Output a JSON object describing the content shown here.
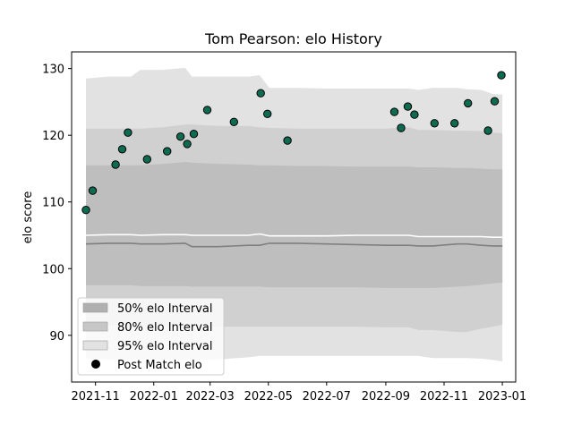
{
  "chart_data": {
    "type": "scatter",
    "title": "Tom Pearson: elo History",
    "xlabel": "",
    "ylabel": "elo score",
    "x_range": [
      "2021-10-07",
      "2023-01-15"
    ],
    "ylim": [
      83,
      132.5
    ],
    "x_ticks": [
      {
        "date": "2021-11-01",
        "label": "2021-11"
      },
      {
        "date": "2022-01-01",
        "label": "2022-01"
      },
      {
        "date": "2022-03-01",
        "label": "2022-03"
      },
      {
        "date": "2022-05-01",
        "label": "2022-05"
      },
      {
        "date": "2022-07-01",
        "label": "2022-07"
      },
      {
        "date": "2022-09-01",
        "label": "2022-09"
      },
      {
        "date": "2022-11-01",
        "label": "2022-11"
      },
      {
        "date": "2023-01-01",
        "label": "2023-01"
      }
    ],
    "y_ticks": [
      90,
      100,
      110,
      120,
      130
    ],
    "grid": false,
    "legend_position": "lower-left",
    "legend": [
      {
        "label": "50% elo Interval",
        "kind": "band",
        "color": "#b0b0b0"
      },
      {
        "label": "80% elo Interval",
        "kind": "band",
        "color": "#c7c7c7"
      },
      {
        "label": "95% elo Interval",
        "kind": "band",
        "color": "#e2e2e2"
      },
      {
        "label": "Post Match elo",
        "kind": "marker",
        "color": "#000000"
      }
    ],
    "colors": {
      "band95": "#e2e2e2",
      "band80": "#d0d0d0",
      "band50": "#bebebe",
      "median_line": "#7f7f7f",
      "mean_line": "#ffffff",
      "marker_fill": "#0e6b4f",
      "marker_edge": "#000000"
    },
    "bands": {
      "dates": [
        "2021-10-22",
        "2021-11-15",
        "2021-12-08",
        "2021-12-18",
        "2022-01-10",
        "2022-02-03",
        "2022-02-10",
        "2022-03-10",
        "2022-04-10",
        "2022-04-22",
        "2022-05-02",
        "2022-06-01",
        "2022-07-01",
        "2022-08-01",
        "2022-09-01",
        "2022-09-25",
        "2022-10-05",
        "2022-10-20",
        "2022-11-15",
        "2022-11-25",
        "2022-12-10",
        "2022-12-22",
        "2023-01-01"
      ],
      "p95_upper": [
        128.5,
        128.8,
        128.8,
        129.8,
        129.8,
        130.1,
        128.8,
        128.8,
        128.8,
        129.0,
        127.1,
        127.1,
        127.0,
        127.0,
        127.0,
        127.0,
        126.8,
        127.1,
        127.1,
        126.9,
        126.8,
        126.2,
        126.1
      ],
      "p80_upper": [
        121.0,
        121.0,
        121.0,
        121.0,
        121.2,
        121.6,
        121.6,
        121.4,
        121.4,
        121.2,
        121.1,
        121.0,
        121.0,
        121.0,
        121.0,
        121.2,
        120.8,
        120.8,
        120.7,
        120.7,
        120.6,
        120.4,
        120.3
      ],
      "p50_upper": [
        115.5,
        115.5,
        115.5,
        115.5,
        115.7,
        116.0,
        115.9,
        115.7,
        115.6,
        115.5,
        115.5,
        115.4,
        115.4,
        115.3,
        115.3,
        115.3,
        115.2,
        115.2,
        115.1,
        115.1,
        115.0,
        114.9,
        114.9
      ],
      "mean": [
        105.0,
        105.1,
        105.1,
        105.0,
        105.1,
        105.1,
        105.0,
        105.0,
        105.0,
        105.2,
        104.9,
        104.9,
        104.9,
        105.0,
        105.0,
        105.0,
        104.8,
        104.8,
        104.8,
        104.8,
        104.8,
        104.7,
        104.7
      ],
      "median": [
        103.7,
        103.8,
        103.8,
        103.7,
        103.7,
        103.8,
        103.3,
        103.3,
        103.5,
        103.5,
        103.8,
        103.8,
        103.7,
        103.6,
        103.5,
        103.5,
        103.4,
        103.4,
        103.7,
        103.7,
        103.5,
        103.4,
        103.4
      ],
      "p50_lower": [
        97.5,
        97.5,
        97.5,
        97.4,
        97.4,
        97.4,
        97.3,
        97.3,
        97.3,
        97.3,
        97.2,
        97.2,
        97.2,
        97.2,
        97.1,
        97.1,
        97.1,
        97.1,
        97.3,
        97.4,
        97.6,
        97.8,
        97.9
      ],
      "p80_lower": [
        91.5,
        91.5,
        91.5,
        91.4,
        91.4,
        91.4,
        91.3,
        91.3,
        91.3,
        91.3,
        91.3,
        91.3,
        91.3,
        91.3,
        91.2,
        91.2,
        90.8,
        90.8,
        90.5,
        90.5,
        91.0,
        91.3,
        91.6
      ],
      "p95_lower": [
        86.5,
        86.4,
        86.4,
        86.4,
        86.4,
        86.4,
        86.4,
        86.4,
        86.7,
        86.9,
        86.9,
        86.9,
        86.9,
        86.9,
        86.9,
        86.9,
        86.9,
        86.6,
        86.6,
        86.6,
        86.5,
        86.3,
        86.1
      ]
    },
    "points": [
      {
        "date": "2021-10-22",
        "elo": 108.8
      },
      {
        "date": "2021-10-29",
        "elo": 111.7
      },
      {
        "date": "2021-11-22",
        "elo": 115.6
      },
      {
        "date": "2021-11-29",
        "elo": 117.9
      },
      {
        "date": "2021-12-05",
        "elo": 120.4
      },
      {
        "date": "2021-12-25",
        "elo": 116.4
      },
      {
        "date": "2022-01-15",
        "elo": 117.6
      },
      {
        "date": "2022-01-29",
        "elo": 119.8
      },
      {
        "date": "2022-02-05",
        "elo": 118.7
      },
      {
        "date": "2022-02-12",
        "elo": 120.2
      },
      {
        "date": "2022-02-26",
        "elo": 123.8
      },
      {
        "date": "2022-03-26",
        "elo": 122.0
      },
      {
        "date": "2022-04-23",
        "elo": 126.3
      },
      {
        "date": "2022-04-30",
        "elo": 123.2
      },
      {
        "date": "2022-05-21",
        "elo": 119.2
      },
      {
        "date": "2022-09-10",
        "elo": 123.5
      },
      {
        "date": "2022-09-17",
        "elo": 121.1
      },
      {
        "date": "2022-09-24",
        "elo": 124.3
      },
      {
        "date": "2022-10-01",
        "elo": 123.1
      },
      {
        "date": "2022-10-22",
        "elo": 121.8
      },
      {
        "date": "2022-11-12",
        "elo": 121.8
      },
      {
        "date": "2022-11-26",
        "elo": 124.8
      },
      {
        "date": "2022-12-17",
        "elo": 120.7
      },
      {
        "date": "2022-12-24",
        "elo": 125.1
      },
      {
        "date": "2022-12-31",
        "elo": 129.0
      }
    ]
  }
}
